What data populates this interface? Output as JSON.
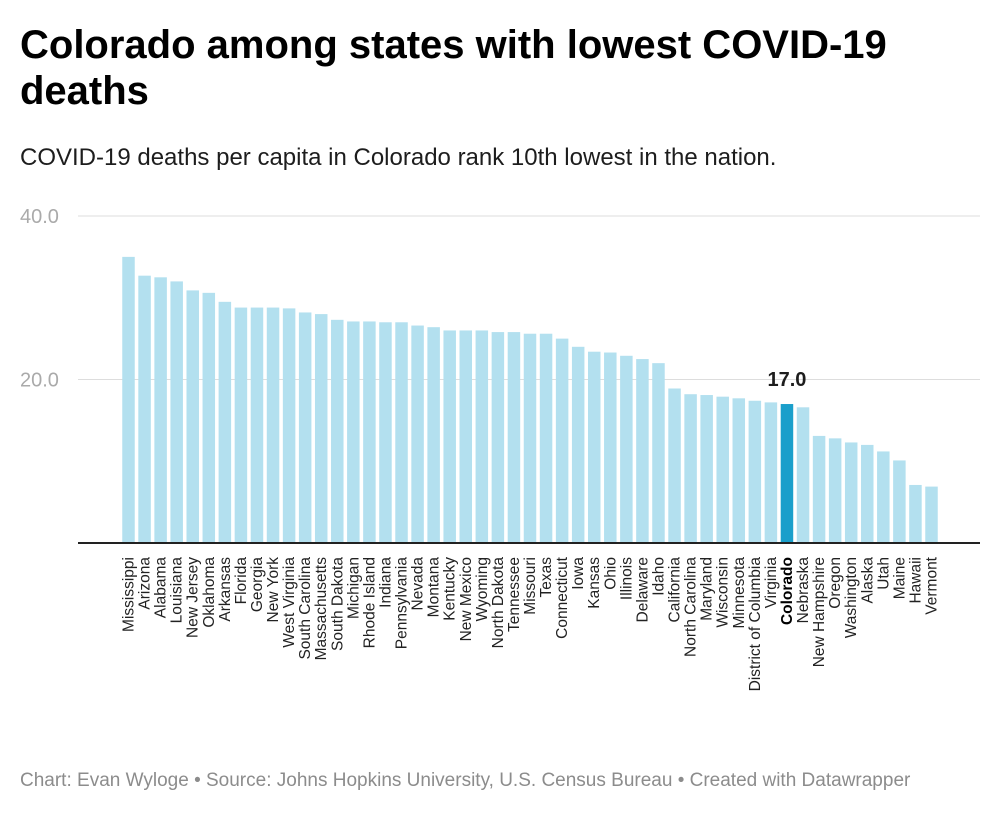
{
  "title": "Colorado among states with lowest COVID-19 deaths",
  "subtitle": "COVID-19 deaths per capita in Colorado rank 10th lowest in the nation.",
  "footer": "Chart: Evan Wyloge • Source: Johns Hopkins University, U.S. Census Bureau • Created with Datawrapper",
  "colors": {
    "bar": "#b3e0ef",
    "highlight": "#1a9fcb",
    "grid": "#dddddd",
    "axis": "#222222"
  },
  "chart_data": {
    "type": "bar",
    "title": "Colorado among states with lowest COVID-19 deaths",
    "subtitle": "COVID-19 deaths per capita in Colorado rank 10th lowest in the nation.",
    "xlabel": "",
    "ylabel": "",
    "ylim": [
      0,
      40
    ],
    "yticks": [
      "20.0",
      "40.0"
    ],
    "yticks_values": [
      20,
      40
    ],
    "grid": true,
    "highlight_category": "Colorado",
    "highlight_label": "17.0",
    "categories": [
      "Mississippi",
      "Arizona",
      "Alabama",
      "Louisiana",
      "New Jersey",
      "Oklahoma",
      "Arkansas",
      "Florida",
      "Georgia",
      "New York",
      "West Virginia",
      "South Carolina",
      "Massachusetts",
      "South Dakota",
      "Michigan",
      "Rhode Island",
      "Indiana",
      "Pennsylvania",
      "Nevada",
      "Montana",
      "Kentucky",
      "New Mexico",
      "Wyoming",
      "North Dakota",
      "Tennessee",
      "Missouri",
      "Texas",
      "Connecticut",
      "Iowa",
      "Kansas",
      "Ohio",
      "Illinois",
      "Delaware",
      "Idaho",
      "California",
      "North Carolina",
      "Maryland",
      "Wisconsin",
      "Minnesota",
      "District of Columbia",
      "Virginia",
      "Colorado",
      "Nebraska",
      "New Hampshire",
      "Oregon",
      "Washington",
      "Alaska",
      "Utah",
      "Maine",
      "Hawaii",
      "Vermont"
    ],
    "values": [
      35.0,
      32.7,
      32.5,
      32.0,
      30.9,
      30.6,
      29.5,
      28.8,
      28.8,
      28.8,
      28.7,
      28.2,
      28.0,
      27.3,
      27.1,
      27.1,
      27.0,
      27.0,
      26.6,
      26.4,
      26.0,
      26.0,
      26.0,
      25.8,
      25.8,
      25.6,
      25.6,
      25.0,
      24.0,
      23.4,
      23.3,
      22.9,
      22.5,
      22.0,
      18.9,
      18.2,
      18.1,
      17.9,
      17.7,
      17.4,
      17.2,
      17.0,
      16.6,
      13.1,
      12.8,
      12.3,
      12.0,
      11.2,
      10.1,
      7.1,
      6.9
    ]
  }
}
